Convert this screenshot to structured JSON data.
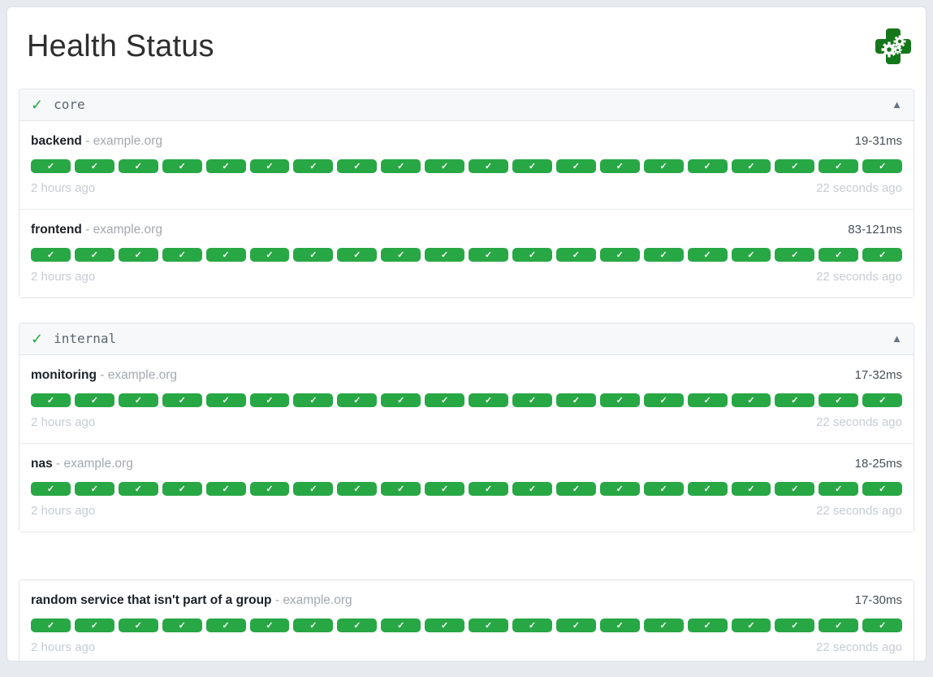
{
  "page": {
    "title": "Health Status"
  },
  "ui": {
    "separator": "-",
    "group_status_check": "✓",
    "collapse_caret": "▲",
    "badge_check": "✓",
    "results_per_row": 20
  },
  "colors": {
    "success_green": "#28a745",
    "logo_green": "#15771b",
    "page_bg": "#e7eaee",
    "card_bg": "#ffffff",
    "group_header_bg": "#f7f8fa",
    "border": "#e1e4e8",
    "timestamp_muted": "#c6cbd4"
  },
  "groups": [
    {
      "name": "core",
      "healthy": true,
      "endpoints": [
        {
          "name": "backend",
          "host": "example.org",
          "response_time": "19-31ms",
          "oldest_result": "2 hours ago",
          "newest_result": "22 seconds ago",
          "results": {
            "count": 20,
            "status": "success"
          }
        },
        {
          "name": "frontend",
          "host": "example.org",
          "response_time": "83-121ms",
          "oldest_result": "2 hours ago",
          "newest_result": "22 seconds ago",
          "results": {
            "count": 20,
            "status": "success"
          }
        }
      ]
    },
    {
      "name": "internal",
      "healthy": true,
      "endpoints": [
        {
          "name": "monitoring",
          "host": "example.org",
          "response_time": "17-32ms",
          "oldest_result": "2 hours ago",
          "newest_result": "22 seconds ago",
          "results": {
            "count": 20,
            "status": "success"
          }
        },
        {
          "name": "nas",
          "host": "example.org",
          "response_time": "18-25ms",
          "oldest_result": "2 hours ago",
          "newest_result": "22 seconds ago",
          "results": {
            "count": 20,
            "status": "success"
          }
        }
      ]
    }
  ],
  "ungrouped_endpoints": [
    {
      "name": "random service that isn't part of a group",
      "host": "example.org",
      "response_time": "17-30ms",
      "oldest_result": "2 hours ago",
      "newest_result": "22 seconds ago",
      "results": {
        "count": 20,
        "status": "success"
      }
    }
  ]
}
